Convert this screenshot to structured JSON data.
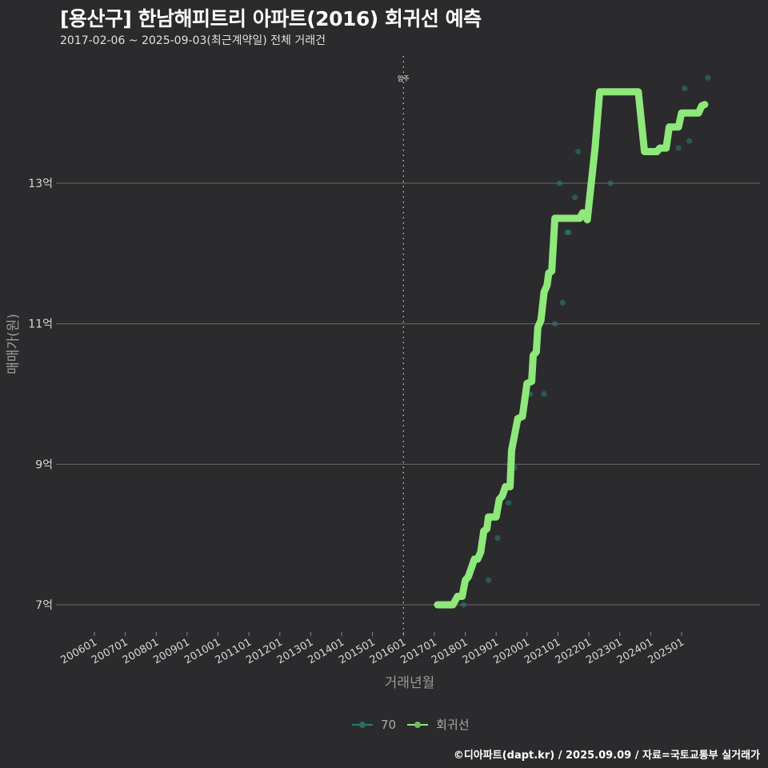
{
  "header": {
    "title": "[용산구] 한남해피트리 아파트(2016) 회귀선 예측",
    "subtitle": "2017-02-06 ~ 2025-09-03(최근계약일) 전체 거래건"
  },
  "annotation": {
    "label": "입주",
    "x": "201601"
  },
  "legend": [
    {
      "label": "70",
      "color": "#2a7f74"
    },
    {
      "label": "회귀선",
      "color": "#8ee87a"
    }
  ],
  "caption": "©디아파트(dapt.kr) / 2025.09.09 / 자료=국토교통부 실거래가",
  "colors": {
    "background": "#2b2b2d",
    "grid": "#5c5c5c",
    "regression": "#8ee87a",
    "scatter": "#2a7f74"
  },
  "chart_data": {
    "type": "line",
    "title": "[용산구] 한남해피트리 아파트(2016) 회귀선 예측",
    "subtitle": "2017-02-06 ~ 2025-09-03(최근계약일) 전체 거래건",
    "xlabel": "거래년월",
    "ylabel": "매매가(원)",
    "x_tick_labels": [
      "200601",
      "200701",
      "200801",
      "200901",
      "201001",
      "201101",
      "201201",
      "201301",
      "201401",
      "201501",
      "201601",
      "201701",
      "201801",
      "201901",
      "202001",
      "202101",
      "202201",
      "202301",
      "202401",
      "202501"
    ],
    "y_tick_labels": [
      "7억",
      "9억",
      "11억",
      "13억"
    ],
    "y_ticks": [
      7,
      9,
      11,
      13
    ],
    "ylim": [
      6.6,
      14.9
    ],
    "xlim": [
      2005.0,
      2026.2
    ],
    "grid": true,
    "legend_position": "bottom",
    "vline": {
      "x": 2016.0,
      "label": "입주",
      "style": "dotted"
    },
    "series": [
      {
        "name": "회귀선",
        "type": "line",
        "unit": "억",
        "points": [
          [
            2017.1,
            7.0
          ],
          [
            2017.6,
            7.0
          ],
          [
            2017.75,
            7.12
          ],
          [
            2017.9,
            7.12
          ],
          [
            2018.0,
            7.35
          ],
          [
            2018.1,
            7.4
          ],
          [
            2018.3,
            7.65
          ],
          [
            2018.4,
            7.65
          ],
          [
            2018.5,
            7.75
          ],
          [
            2018.6,
            8.05
          ],
          [
            2018.7,
            8.08
          ],
          [
            2018.75,
            8.25
          ],
          [
            2019.0,
            8.25
          ],
          [
            2019.1,
            8.5
          ],
          [
            2019.2,
            8.55
          ],
          [
            2019.3,
            8.68
          ],
          [
            2019.45,
            8.68
          ],
          [
            2019.5,
            9.2
          ],
          [
            2019.7,
            9.65
          ],
          [
            2019.85,
            9.68
          ],
          [
            2020.0,
            10.15
          ],
          [
            2020.15,
            10.18
          ],
          [
            2020.2,
            10.55
          ],
          [
            2020.3,
            10.6
          ],
          [
            2020.35,
            10.95
          ],
          [
            2020.45,
            11.05
          ],
          [
            2020.55,
            11.45
          ],
          [
            2020.65,
            11.55
          ],
          [
            2020.7,
            11.72
          ],
          [
            2020.8,
            11.75
          ],
          [
            2020.9,
            12.5
          ],
          [
            2021.7,
            12.5
          ],
          [
            2021.8,
            12.58
          ],
          [
            2021.95,
            12.48
          ],
          [
            2022.2,
            13.5
          ],
          [
            2022.35,
            14.3
          ],
          [
            2023.6,
            14.3
          ],
          [
            2023.8,
            13.45
          ],
          [
            2024.2,
            13.45
          ],
          [
            2024.3,
            13.5
          ],
          [
            2024.5,
            13.5
          ],
          [
            2024.6,
            13.8
          ],
          [
            2024.9,
            13.8
          ],
          [
            2025.0,
            14.0
          ],
          [
            2025.55,
            14.0
          ],
          [
            2025.65,
            14.1
          ],
          [
            2025.75,
            14.12
          ]
        ]
      },
      {
        "name": "70",
        "type": "scatter",
        "unit": "억",
        "points": [
          [
            2017.95,
            7.0
          ],
          [
            2018.75,
            7.35
          ],
          [
            2019.05,
            7.95
          ],
          [
            2019.4,
            8.45
          ],
          [
            2019.6,
            8.95
          ],
          [
            2020.1,
            10.0
          ],
          [
            2020.55,
            10.0
          ],
          [
            2020.9,
            11.0
          ],
          [
            2021.15,
            11.3
          ],
          [
            2021.3,
            12.3
          ],
          [
            2021.35,
            12.3
          ],
          [
            2021.55,
            12.8
          ],
          [
            2021.65,
            13.45
          ],
          [
            2021.05,
            13.0
          ],
          [
            2022.7,
            13.0
          ],
          [
            2024.9,
            13.5
          ],
          [
            2025.25,
            13.6
          ],
          [
            2025.1,
            14.35
          ],
          [
            2025.85,
            14.5
          ]
        ]
      }
    ]
  }
}
